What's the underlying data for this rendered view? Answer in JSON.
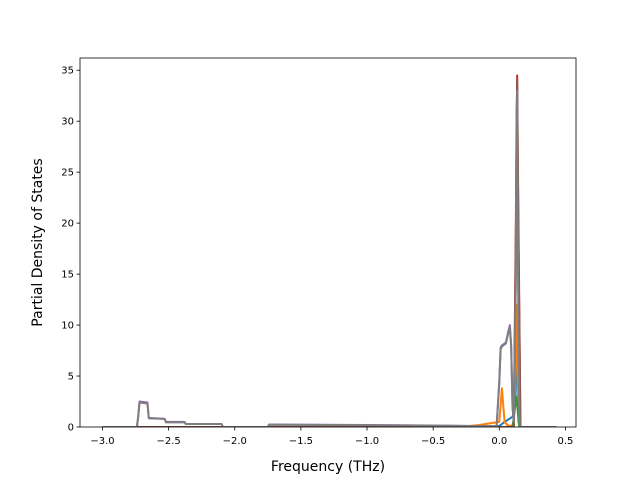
{
  "chart_data": {
    "type": "line",
    "title": "",
    "xlabel": "Frequency (THz)",
    "ylabel": "Partial Density of States",
    "xlim": [
      -3.17,
      0.58
    ],
    "ylim": [
      0,
      36.2
    ],
    "xticks": [
      -3.0,
      -2.5,
      -2.0,
      -1.5,
      -1.0,
      -0.5,
      0.0,
      0.5
    ],
    "xtick_labels": [
      "−3.0",
      "−2.5",
      "−2.0",
      "−1.5",
      "−1.0",
      "−0.5",
      "0.0",
      "0.5"
    ],
    "yticks": [
      0,
      5,
      10,
      15,
      20,
      25,
      30,
      35
    ],
    "ytick_labels": [
      "0",
      "5",
      "10",
      "15",
      "20",
      "25",
      "30",
      "35"
    ],
    "grid": false,
    "legend": "none",
    "series": [
      {
        "color": "#1f77b4",
        "x": [
          -3.0,
          -2.73,
          -2.2,
          -1.73,
          -0.9,
          -0.3,
          0.0,
          0.04,
          0.1,
          0.12,
          0.135,
          0.15,
          0.43
        ],
        "y": [
          0,
          0,
          0,
          0,
          0,
          0,
          0.1,
          0.5,
          1.0,
          2.0,
          8.0,
          0,
          0
        ]
      },
      {
        "color": "#ff7f0e",
        "x": [
          -3.0,
          -0.3,
          -0.15,
          -0.05,
          0.0,
          0.02,
          0.04,
          0.06,
          0.08,
          0.11,
          0.125,
          0.135,
          0.145,
          0.16,
          0.43
        ],
        "y": [
          0,
          0,
          0.2,
          0.4,
          0.5,
          3.8,
          0.5,
          0.2,
          0.1,
          0.2,
          6.0,
          12.0,
          0.5,
          0,
          0
        ]
      },
      {
        "color": "#2ca02c",
        "x": [
          -3.0,
          0.0,
          0.1,
          0.13,
          0.15,
          0.43
        ],
        "y": [
          0,
          0,
          0,
          3.0,
          0,
          0
        ]
      },
      {
        "color": "#d62728",
        "x": [
          -3.0,
          0.11,
          0.125,
          0.135,
          0.145,
          0.16,
          0.43
        ],
        "y": [
          0,
          0,
          20.0,
          34.5,
          20.0,
          0,
          0
        ]
      },
      {
        "color": "#9467bd",
        "x": [
          -3.0,
          -2.74,
          -2.73,
          -2.72,
          -2.66,
          -2.65,
          -2.53,
          -2.52,
          -2.38,
          -2.37,
          -2.1,
          -2.09,
          -1.75,
          -1.74,
          -1.0,
          -0.5,
          -0.2,
          -0.02,
          0.0,
          0.01,
          0.02,
          0.05,
          0.07,
          0.08,
          0.09,
          0.1,
          0.11,
          0.125,
          0.13,
          0.135,
          0.14,
          0.15,
          0.155,
          0.43
        ],
        "y": [
          0,
          0,
          1.0,
          2.5,
          2.4,
          0.9,
          0.8,
          0.5,
          0.5,
          0.3,
          0.3,
          0,
          0,
          0.25,
          0.2,
          0.15,
          0.1,
          0.1,
          4.5,
          7.8,
          8.0,
          8.3,
          9.5,
          10.0,
          8.0,
          2.0,
          0.5,
          15.0,
          30.0,
          33.5,
          20.0,
          3.0,
          0,
          0
        ]
      },
      {
        "color": "#8c564b",
        "x": [
          -3.0,
          0.11,
          0.125,
          0.135,
          0.145,
          0.16,
          0.43
        ],
        "y": [
          0,
          0,
          18.0,
          34.2,
          18.0,
          0,
          0
        ]
      },
      {
        "color": "#7f7f7f",
        "x": [
          -3.0,
          -2.74,
          -2.73,
          -2.72,
          -2.66,
          -2.65,
          -2.53,
          -2.52,
          -2.38,
          -2.37,
          -2.1,
          -2.09,
          -1.75,
          -1.74,
          -1.0,
          -0.5,
          -0.2,
          -0.02,
          0.0,
          0.01,
          0.02,
          0.05,
          0.07,
          0.08,
          0.09,
          0.1,
          0.11,
          0.125,
          0.13,
          0.135,
          0.14,
          0.15,
          0.155,
          0.43
        ],
        "y": [
          0,
          0,
          1.0,
          2.4,
          2.3,
          0.85,
          0.8,
          0.45,
          0.45,
          0.3,
          0.3,
          0,
          0,
          0.22,
          0.18,
          0.13,
          0.1,
          0.1,
          4.3,
          7.6,
          7.9,
          8.2,
          9.3,
          9.8,
          7.8,
          2.0,
          0.5,
          14.0,
          29.0,
          33.0,
          19.0,
          3.0,
          0,
          0
        ]
      }
    ]
  }
}
